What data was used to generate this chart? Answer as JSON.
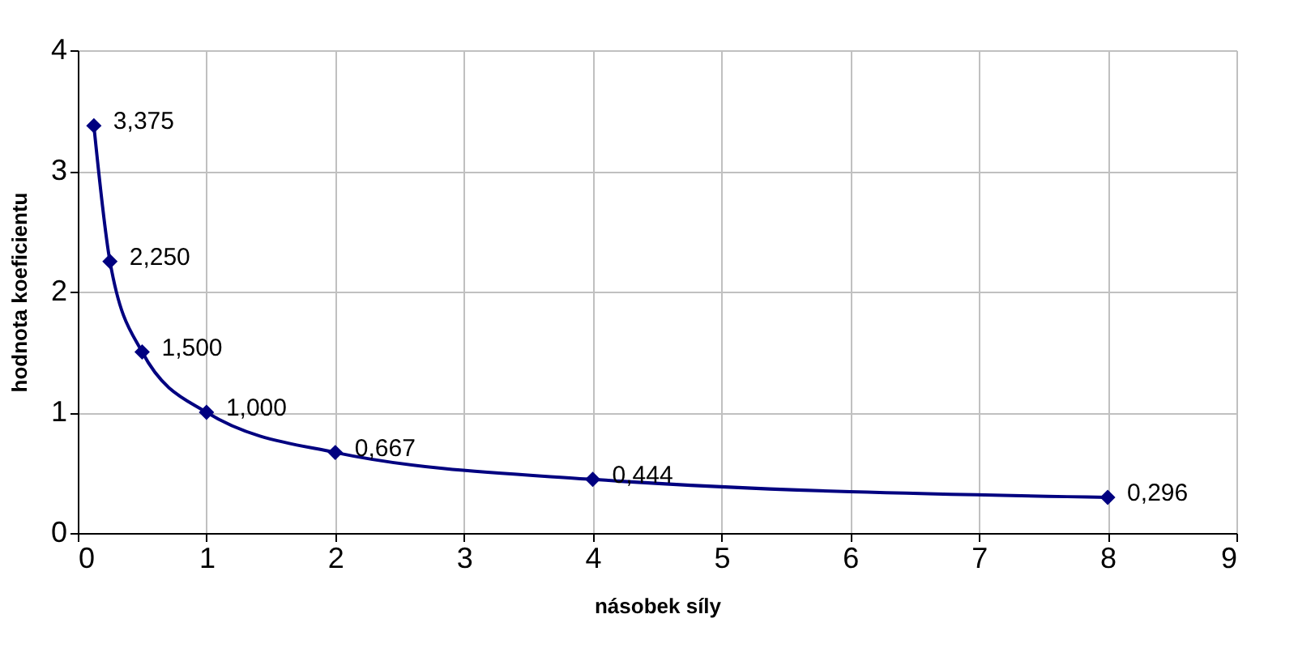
{
  "chart_data": {
    "type": "line",
    "xlabel": "násobek síly",
    "ylabel": "hodnota koeficientu",
    "x": [
      0.125,
      0.25,
      0.5,
      1,
      2,
      4,
      8
    ],
    "series": [
      {
        "color": "#000080",
        "values": [
          3.375,
          2.25,
          1.5,
          1,
          0.667,
          0.444,
          0.296
        ]
      }
    ],
    "value_labels": [
      "3,375",
      "2,250",
      "1,500",
      "1,000",
      "0,667",
      "0,444",
      "0,296"
    ],
    "xlim": [
      0,
      9
    ],
    "xticks": [
      0,
      1,
      2,
      3,
      4,
      5,
      6,
      7,
      8,
      9
    ],
    "ylim": [
      0,
      4
    ],
    "yticks": [
      0,
      1,
      2,
      3,
      4
    ],
    "grid": true,
    "marker": "diamond",
    "line_style": "solid"
  }
}
